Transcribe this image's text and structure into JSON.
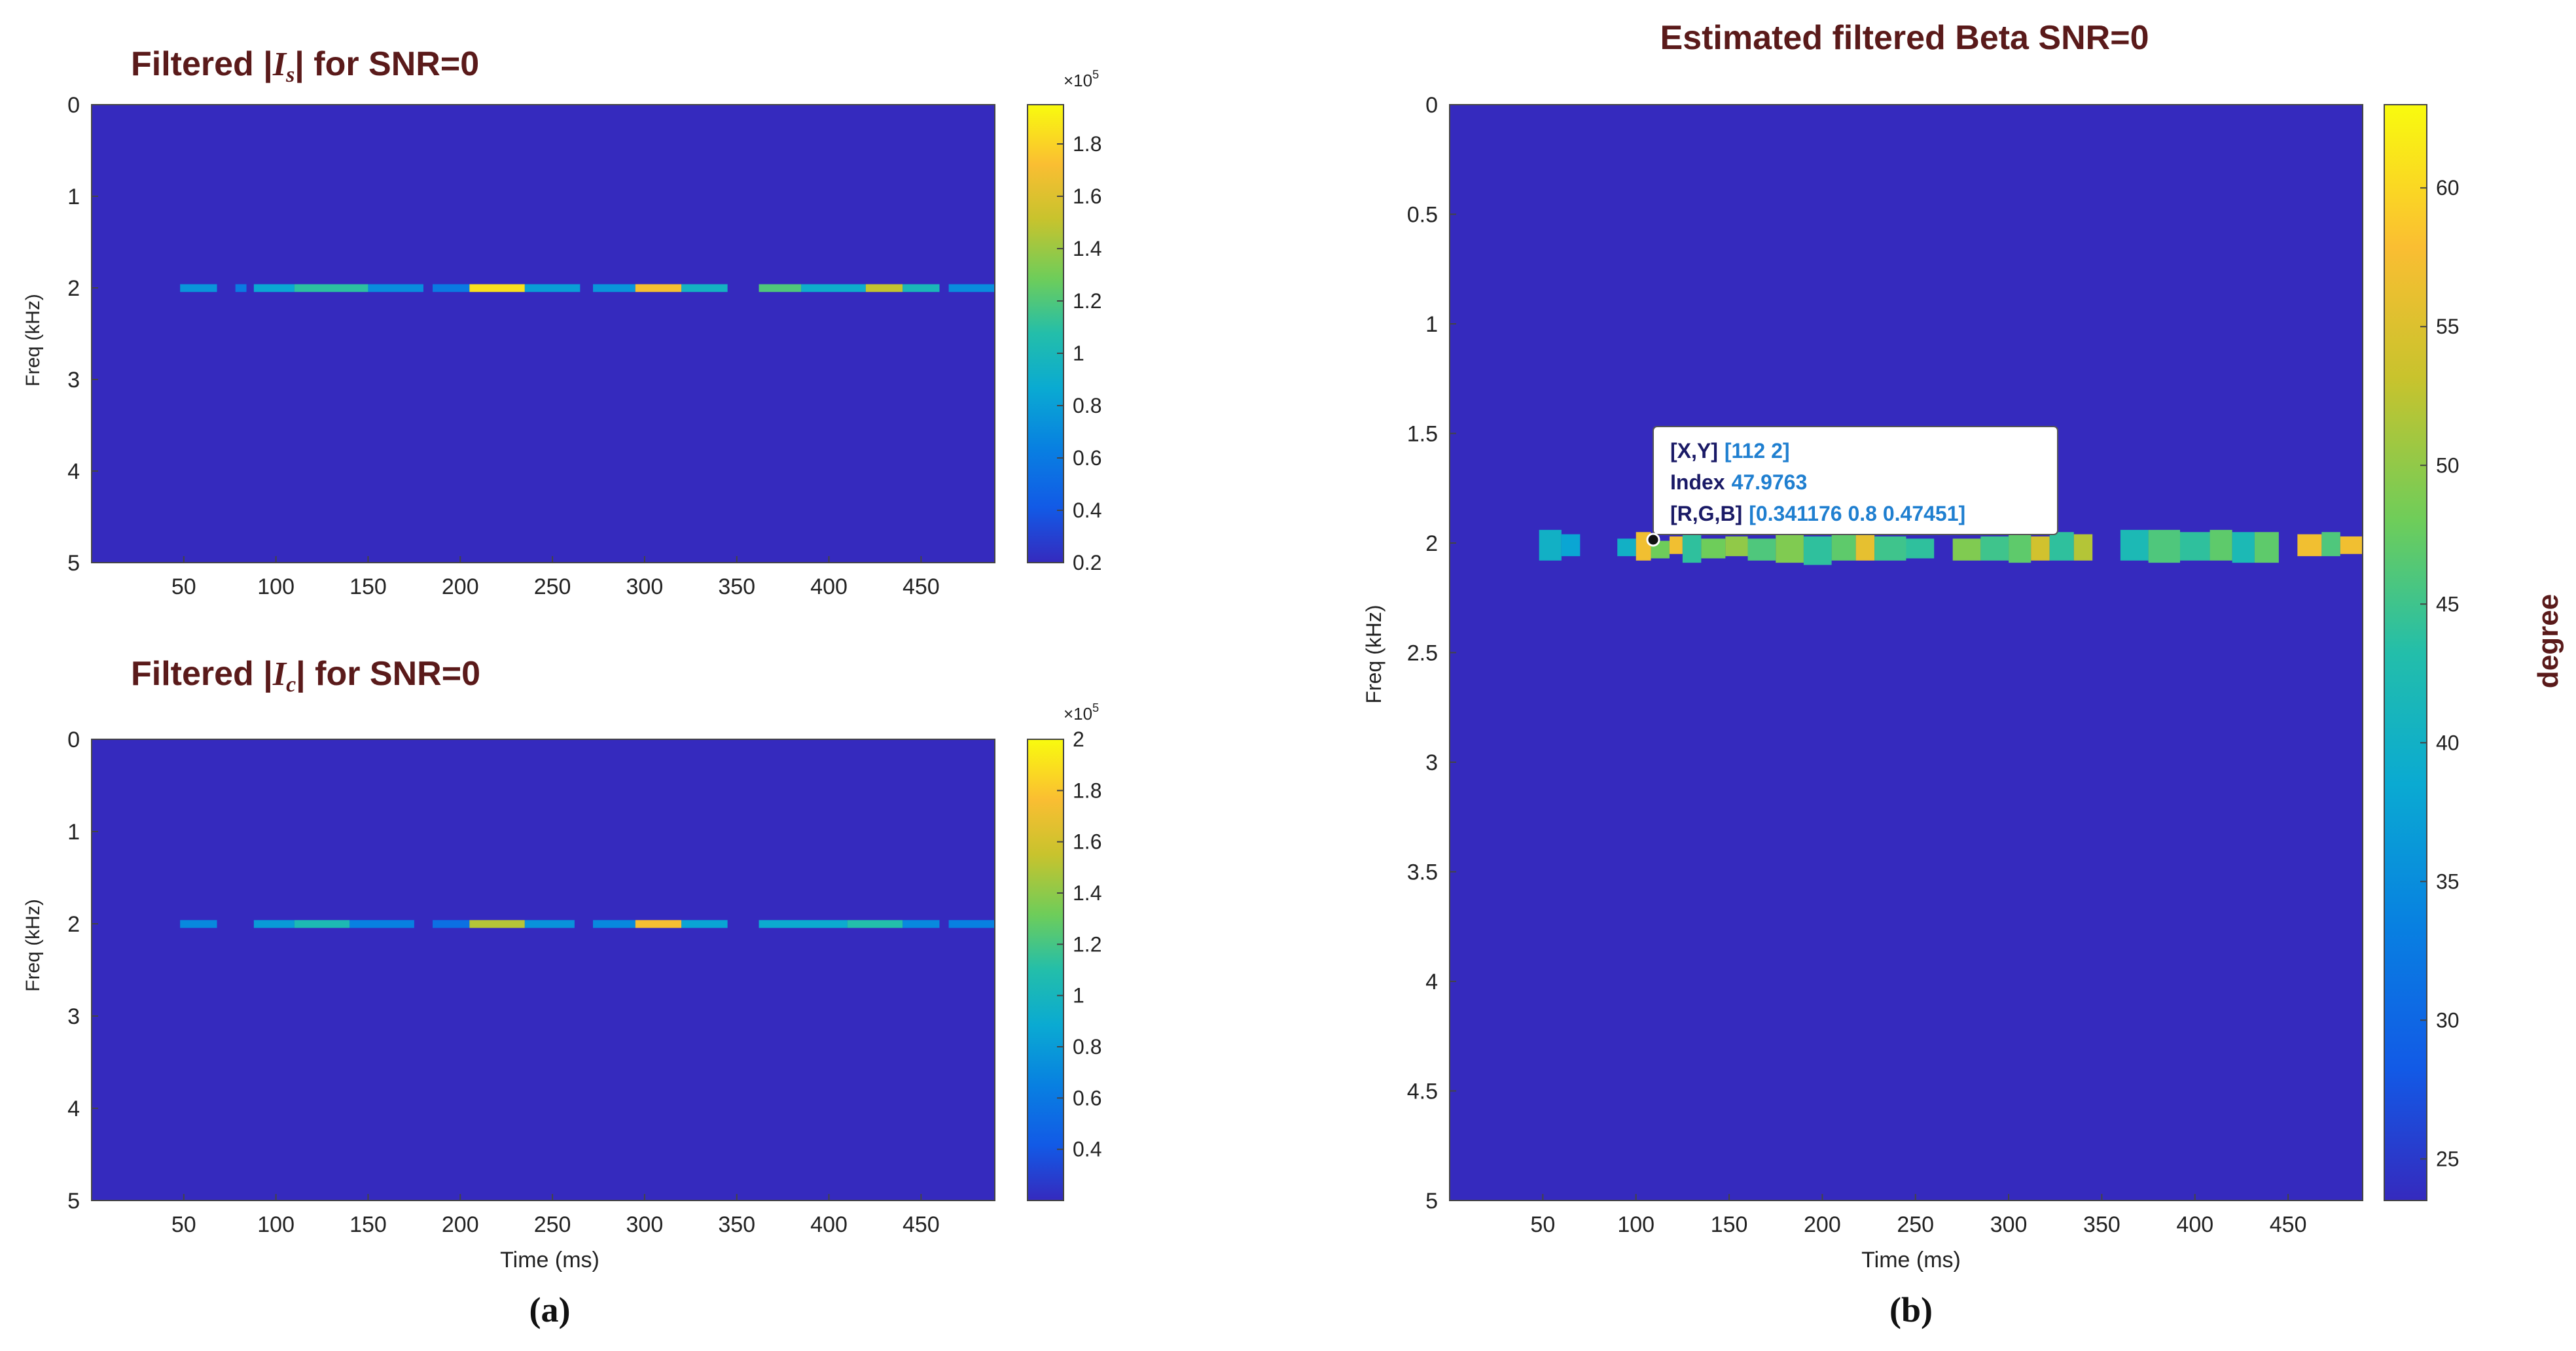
{
  "chart_data": [
    {
      "id": "is",
      "type": "heatmap",
      "title_prefix": "Filtered |",
      "title_symbol": "I",
      "title_subscript": "s",
      "title_suffix": "| for SNR=0",
      "xlabel": "",
      "ylabel": "Freq (kHz)",
      "xlim": [
        0,
        490
      ],
      "ylim": [
        0,
        5
      ],
      "x_ticks": [
        50,
        100,
        150,
        200,
        250,
        300,
        350,
        400,
        450
      ],
      "y_ticks": [
        0,
        1,
        2,
        3,
        4,
        5
      ],
      "background_value": 0.2,
      "colorbar": {
        "range": [
          0.2,
          1.95
        ],
        "ticks": [
          0.2,
          0.4,
          0.6,
          0.8,
          1,
          1.2,
          1.4,
          1.6,
          1.8
        ],
        "tick_labels": [
          "0.2",
          "0.4",
          "0.6",
          "0.8",
          "1",
          "1.2",
          "1.4",
          "1.6",
          "1.8"
        ],
        "exponent_label": "×10",
        "exponent_power": "5"
      },
      "band": {
        "freq": 2,
        "segments": [
          {
            "x0": 48,
            "x1": 68,
            "value": 0.75
          },
          {
            "x0": 78,
            "x1": 84,
            "value": 0.6
          },
          {
            "x0": 88,
            "x1": 110,
            "value": 0.85
          },
          {
            "x0": 110,
            "x1": 150,
            "value": 1.1
          },
          {
            "x0": 150,
            "x1": 180,
            "value": 0.7
          },
          {
            "x0": 185,
            "x1": 205,
            "value": 0.6
          },
          {
            "x0": 205,
            "x1": 235,
            "value": 1.85
          },
          {
            "x0": 235,
            "x1": 265,
            "value": 0.8
          },
          {
            "x0": 272,
            "x1": 295,
            "value": 0.75
          },
          {
            "x0": 295,
            "x1": 320,
            "value": 1.7
          },
          {
            "x0": 320,
            "x1": 345,
            "value": 0.95
          },
          {
            "x0": 362,
            "x1": 385,
            "value": 1.2
          },
          {
            "x0": 385,
            "x1": 420,
            "value": 0.9
          },
          {
            "x0": 420,
            "x1": 440,
            "value": 1.5
          },
          {
            "x0": 440,
            "x1": 460,
            "value": 1.0
          },
          {
            "x0": 465,
            "x1": 490,
            "value": 0.7
          }
        ]
      }
    },
    {
      "id": "ic",
      "type": "heatmap",
      "title_prefix": "Filtered |",
      "title_symbol": "I",
      "title_subscript": "c",
      "title_suffix": "| for SNR=0",
      "xlabel": "Time (ms)",
      "ylabel": "Freq (kHz)",
      "xlim": [
        0,
        490
      ],
      "ylim": [
        0,
        5
      ],
      "x_ticks": [
        50,
        100,
        150,
        200,
        250,
        300,
        350,
        400,
        450
      ],
      "y_ticks": [
        0,
        1,
        2,
        3,
        4,
        5
      ],
      "background_value": 0.2,
      "colorbar": {
        "range": [
          0.2,
          2.0
        ],
        "ticks": [
          0.4,
          0.6,
          0.8,
          1,
          1.2,
          1.4,
          1.6,
          1.8,
          2
        ],
        "tick_labels": [
          "0.4",
          "0.6",
          "0.8",
          "1",
          "1.2",
          "1.4",
          "1.6",
          "1.8",
          "2"
        ],
        "exponent_label": "×10",
        "exponent_power": "5"
      },
      "band": {
        "freq": 2,
        "segments": [
          {
            "x0": 48,
            "x1": 68,
            "value": 0.7
          },
          {
            "x0": 88,
            "x1": 110,
            "value": 0.8
          },
          {
            "x0": 110,
            "x1": 140,
            "value": 1.05
          },
          {
            "x0": 140,
            "x1": 175,
            "value": 0.65
          },
          {
            "x0": 185,
            "x1": 205,
            "value": 0.55
          },
          {
            "x0": 205,
            "x1": 235,
            "value": 1.5
          },
          {
            "x0": 235,
            "x1": 262,
            "value": 0.75
          },
          {
            "x0": 272,
            "x1": 295,
            "value": 0.7
          },
          {
            "x0": 295,
            "x1": 320,
            "value": 1.75
          },
          {
            "x0": 320,
            "x1": 345,
            "value": 0.85
          },
          {
            "x0": 362,
            "x1": 410,
            "value": 0.9
          },
          {
            "x0": 410,
            "x1": 440,
            "value": 1.1
          },
          {
            "x0": 440,
            "x1": 460,
            "value": 0.7
          },
          {
            "x0": 465,
            "x1": 490,
            "value": 0.65
          }
        ]
      }
    },
    {
      "id": "beta",
      "type": "heatmap",
      "title": "Estimated filtered Beta SNR=0",
      "xlabel": "Time (ms)",
      "ylabel": "Freq (kHz)",
      "xlim": [
        0,
        490
      ],
      "ylim": [
        0,
        5
      ],
      "x_ticks": [
        50,
        100,
        150,
        200,
        250,
        300,
        350,
        400,
        450
      ],
      "y_ticks": [
        0,
        0.5,
        1,
        1.5,
        2,
        2.5,
        3,
        3.5,
        4,
        4.5,
        5
      ],
      "y_tick_labels": [
        "0",
        "0.5",
        "1",
        "1.5",
        "2",
        "2.5",
        "3",
        "3.5",
        "4",
        "4.5",
        "5"
      ],
      "background_value": 23.5,
      "colorbar": {
        "range": [
          23.5,
          63
        ],
        "ticks": [
          25,
          30,
          35,
          40,
          45,
          50,
          55,
          60
        ],
        "tick_labels": [
          "25",
          "30",
          "35",
          "40",
          "45",
          "50",
          "55",
          "60"
        ],
        "label": "degree"
      },
      "band": {
        "freq": 2,
        "segments": [
          {
            "x0": 48,
            "x1": 60,
            "value": 40,
            "f0": 1.94,
            "f1": 2.08
          },
          {
            "x0": 60,
            "x1": 70,
            "value": 38,
            "f0": 1.96,
            "f1": 2.06
          },
          {
            "x0": 90,
            "x1": 100,
            "value": 40,
            "f0": 1.98,
            "f1": 2.06
          },
          {
            "x0": 100,
            "x1": 108,
            "value": 57,
            "f0": 1.95,
            "f1": 2.08
          },
          {
            "x0": 108,
            "x1": 118,
            "value": 48,
            "f0": 1.99,
            "f1": 2.07
          },
          {
            "x0": 118,
            "x1": 125,
            "value": 57,
            "f0": 1.97,
            "f1": 2.05
          },
          {
            "x0": 125,
            "x1": 135,
            "value": 44,
            "f0": 1.96,
            "f1": 2.09
          },
          {
            "x0": 135,
            "x1": 148,
            "value": 48,
            "f0": 1.98,
            "f1": 2.07
          },
          {
            "x0": 148,
            "x1": 160,
            "value": 50,
            "f0": 1.97,
            "f1": 2.06
          },
          {
            "x0": 160,
            "x1": 175,
            "value": 46,
            "f0": 1.98,
            "f1": 2.08
          },
          {
            "x0": 175,
            "x1": 190,
            "value": 49,
            "f0": 1.96,
            "f1": 2.09
          },
          {
            "x0": 190,
            "x1": 205,
            "value": 44,
            "f0": 1.97,
            "f1": 2.1
          },
          {
            "x0": 205,
            "x1": 218,
            "value": 47,
            "f0": 1.96,
            "f1": 2.08
          },
          {
            "x0": 218,
            "x1": 228,
            "value": 56,
            "f0": 1.95,
            "f1": 2.08
          },
          {
            "x0": 228,
            "x1": 245,
            "value": 45,
            "f0": 1.97,
            "f1": 2.08
          },
          {
            "x0": 245,
            "x1": 260,
            "value": 44,
            "f0": 1.98,
            "f1": 2.07
          },
          {
            "x0": 270,
            "x1": 285,
            "value": 49,
            "f0": 1.98,
            "f1": 2.08
          },
          {
            "x0": 285,
            "x1": 300,
            "value": 45,
            "f0": 1.97,
            "f1": 2.08
          },
          {
            "x0": 300,
            "x1": 312,
            "value": 47,
            "f0": 1.96,
            "f1": 2.09
          },
          {
            "x0": 312,
            "x1": 322,
            "value": 54,
            "f0": 1.97,
            "f1": 2.08
          },
          {
            "x0": 322,
            "x1": 335,
            "value": 44,
            "f0": 1.95,
            "f1": 2.08
          },
          {
            "x0": 335,
            "x1": 345,
            "value": 52,
            "f0": 1.96,
            "f1": 2.08
          },
          {
            "x0": 360,
            "x1": 375,
            "value": 42,
            "f0": 1.94,
            "f1": 2.08
          },
          {
            "x0": 375,
            "x1": 392,
            "value": 46,
            "f0": 1.94,
            "f1": 2.09
          },
          {
            "x0": 392,
            "x1": 408,
            "value": 44,
            "f0": 1.95,
            "f1": 2.08
          },
          {
            "x0": 408,
            "x1": 420,
            "value": 47,
            "f0": 1.94,
            "f1": 2.08
          },
          {
            "x0": 420,
            "x1": 432,
            "value": 42,
            "f0": 1.95,
            "f1": 2.09
          },
          {
            "x0": 432,
            "x1": 445,
            "value": 47,
            "f0": 1.95,
            "f1": 2.09
          },
          {
            "x0": 455,
            "x1": 468,
            "value": 57,
            "f0": 1.96,
            "f1": 2.06
          },
          {
            "x0": 468,
            "x1": 478,
            "value": 46,
            "f0": 1.95,
            "f1": 2.06
          },
          {
            "x0": 478,
            "x1": 490,
            "value": 57,
            "f0": 1.97,
            "f1": 2.05
          }
        ]
      },
      "datatip": {
        "x": 112,
        "y": 2,
        "line1_label": "[X,Y]",
        "line1_value": "[112 2]",
        "line2_label": "Index",
        "line2_value": "47.9763",
        "line3_label": "[R,G,B]",
        "line3_value": "[0.341176 0.8 0.47451]"
      }
    }
  ],
  "captions": {
    "a": "(a)",
    "b": "(b)"
  },
  "colors": {
    "title": "#5a1a1a",
    "datatip_label": "#1a1a66",
    "datatip_value": "#1f7fd0",
    "tip_marker": "#222222"
  }
}
